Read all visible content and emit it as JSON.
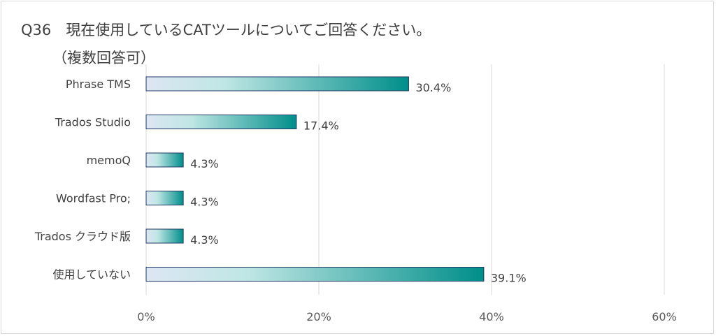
{
  "title": "Q36　現在使用しているCATツールについてご回答ください。",
  "subtitle": "（複数回答可）",
  "chart_data": {
    "type": "bar",
    "orientation": "horizontal",
    "categories": [
      "Phrase TMS",
      "Trados Studio",
      "memoQ",
      "Wordfast Pro;",
      "Trados クラウド版",
      "使用していない"
    ],
    "values": [
      30.4,
      17.4,
      4.3,
      4.3,
      4.3,
      39.1
    ],
    "value_labels": [
      "30.4%",
      "17.4%",
      "4.3%",
      "4.3%",
      "4.3%",
      "39.1%"
    ],
    "xlim": [
      0,
      60
    ],
    "x_ticks": [
      0,
      20,
      40,
      60
    ],
    "x_tick_labels": [
      "0%",
      "20%",
      "40%",
      "60%"
    ],
    "grid": true,
    "bar_gradient": [
      "#dde6f3",
      "#bfe6e4",
      "#008e8a"
    ],
    "bar_border": "#1f3864",
    "grid_color": "#d9d9d9"
  }
}
